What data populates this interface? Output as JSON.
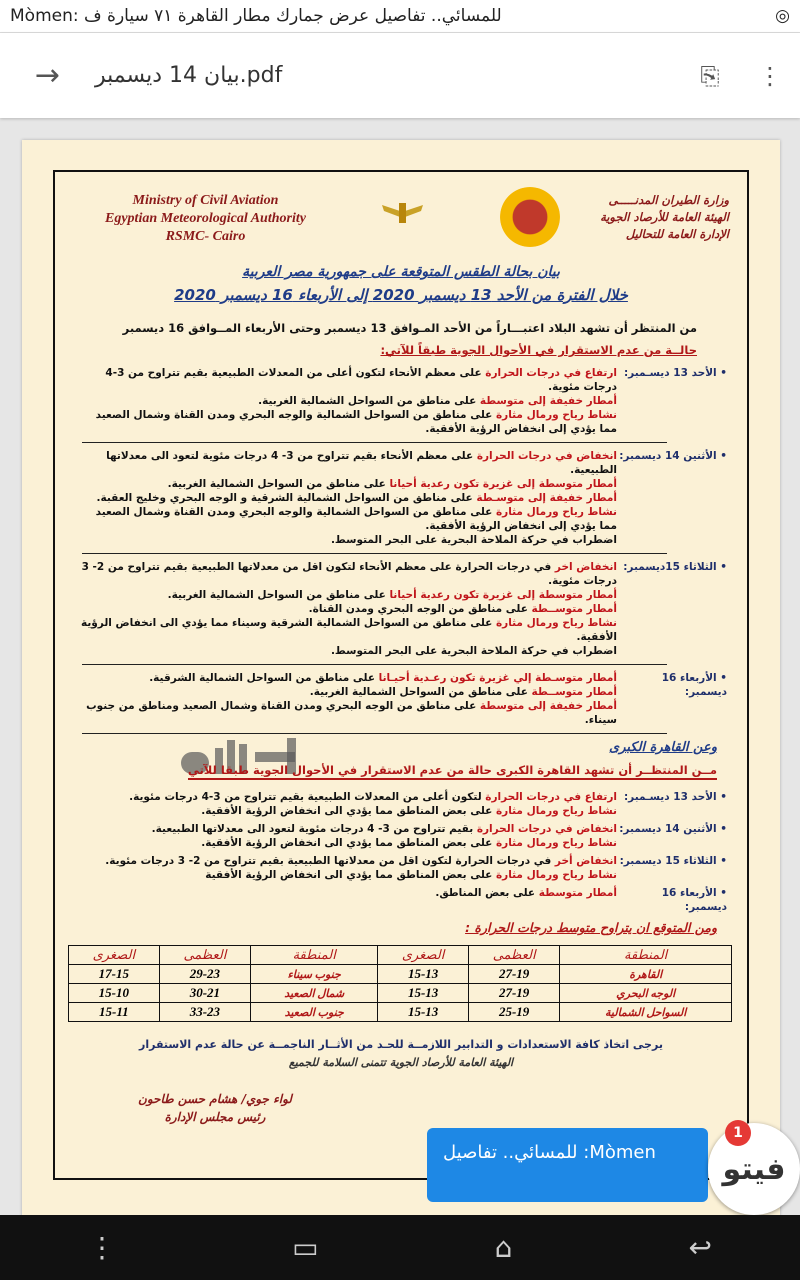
{
  "status_bar": {
    "notification": "للمسائي.. تفاصيل عرض جمارك مطار القاهرة ٧١ سيارة ف :Mòmen",
    "icon": "messenger-icon"
  },
  "toolbar": {
    "back_icon": "arrow-back-icon",
    "title": "بيان 14 ديسمبر.pdf",
    "search_icon": "search-document-icon",
    "menu_icon": "more-vert-icon"
  },
  "doc": {
    "header_en": [
      "Ministry of Civil Aviation",
      "Egyptian Meteorological Authority",
      "RSMC- Cairo"
    ],
    "header_ar": [
      "وزارة الطيران المدنـــــى",
      "الهيئة العامة للأرصاد الجوية",
      "الإدارة العامة للتحاليل"
    ],
    "title1": "بيان بحالة الطقس المتوقعة على جمهورية مصر العربية",
    "title2": "خلال الفترة من الأحد 13 ديسمبر 2020 إلى الأربعاء 16 ديسمبر 2020",
    "intro": "من المنتظر أن تشهد البلاد  اعتبـــاراً من الأحد المـوافق 13 ديسمبر وحتى الأربعاء المــوافق 16 ديسمبر",
    "subtitle": "حالــة من عدم الاستقرار في الأحوال الجوية طبقاً للآتي:",
    "days": [
      {
        "label": "الأحد 13 ديسـمبر:",
        "lines": [
          {
            "red": "ارتفاع في درجات الحرارة",
            "text": " على معظم الأنحاء لتكون أعلى من المعدلات الطبيعية بقيم تتراوح من 3-4 درجات مئوية."
          },
          {
            "red": "أمطار خفيفة إلى متوسطة",
            "text": " على مناطق من السواحل الشمالية الغربية."
          },
          {
            "red": "نشاط رياح ورمال مثارة",
            "text": " على مناطق من السواحل الشمالية والوجه البحري ومدن القناة وشمال الصعيد مما يؤدي إلى انخفاض الرؤية الأفقية."
          }
        ]
      },
      {
        "label": "الأثنين 14 ديسمبر:",
        "lines": [
          {
            "red": "انخفاض في درجات الحرارة",
            "text": " على معظم الأنحاء بقيم تتراوح من 3- 4 درجات مئوية  لتعود الى معدلاتها الطبيعية."
          },
          {
            "red": "أمطار متوسطة إلى غزيرة تكون رعدية أحيانا",
            "text": " على مناطق من السواحل الشمالية الغربية."
          },
          {
            "red": "أمطار خفيفة إلى متوسـطة",
            "text": " على مناطق من السواحل الشمالية الشرقية و الوجه البحري وخليج العقبة."
          },
          {
            "red": "نشاط رياح ورمال مثارة",
            "text": " على مناطق من السواحل الشمالية والوجه البحري ومدن القناة وشمال الصعيد مما يؤدي إلى انخفاض الرؤية الأفقية."
          },
          {
            "red": "",
            "text": "اضطراب في حركة الملاحة البحرية على البحر المتوسط."
          }
        ]
      },
      {
        "label": "الثلاثاء 15ديسمبر:",
        "lines": [
          {
            "red": "انخفاض اخر",
            "text": " في درجات الحرارة على معظم الأنحاء لتكون اقل من معدلاتها الطبيعية بقيم تتراوح من 2- 3 درجات مئوية."
          },
          {
            "red": "أمطار متوسطة إلى غزيرة تكون رعدية أحيانا",
            "text": " على مناطق من السواحل الشمالية الغربية."
          },
          {
            "red": "أمطار متوســطة",
            "text": " على مناطق من الوجه البحري ومدن القناة."
          },
          {
            "red": "نشاط رياح ورمال مثارة",
            "text": " على مناطق من السواحل الشمالية الشرقية وسيناء مما يؤدي الى انخفاض الرؤية الأفقية."
          },
          {
            "red": "",
            "text": "اضطراب في حركة الملاحة البحرية على البحر المتوسط."
          }
        ]
      },
      {
        "label": "الأربعاء 16 ديسمبر:",
        "lines": [
          {
            "red": "أمطار متوسـطة إلي غزيرة تكون رعـدية أحيـانا",
            "text": " على مناطق من السواحل الشمالية الشرقية."
          },
          {
            "red": "أمطار متوســطة",
            "text": " على مناطق من السواحل الشمالية الغربية."
          },
          {
            "red": "أمطار خفيفة إلى متوسطة",
            "text": " على مناطق من الوجه البحري ومدن القناة وشمال الصعيد ومناطق من جنوب سيناء."
          }
        ]
      }
    ],
    "cairo_title": "وعن القاهرة الكبرى",
    "cairo_intro": "مــن المنتظــر أن تشهد القاهرة الكبرى حالة من عدم الاستقرار في الأحوال الجوية طبقا للآتي",
    "cairo_days": [
      {
        "label": "الأحد 13 ديسـمبر:",
        "lines": [
          {
            "red": "ارتفاع في درجات الحرارة",
            "text": " لتكون أعلى من المعدلات الطبيعية بقيم تتراوح من 3-4 درجات مئوية."
          },
          {
            "red": "نشاط رياح ورمال مثارة",
            "text": " على بعض المناطق مما يؤدي الى انخفاض الرؤية الأفقية."
          }
        ]
      },
      {
        "label": "الأثنين 14 ديسمبر:",
        "lines": [
          {
            "red": "انخفاض في درجات الحرارة",
            "text": " بقيم تتراوح من 3- 4 درجات مئوية لتعود الى معدلاتها الطبيعية."
          },
          {
            "red": "نشاط رياح ورمال مثارة",
            "text": " على بعض المناطق مما يؤدي الى انخفاض الرؤية الأفقية."
          }
        ]
      },
      {
        "label": "الثلاثاء 15 ديسمبر:",
        "lines": [
          {
            "red": "انخفاض أخر",
            "text": " في درجات الحرارة  لتكون اقل من معدلاتها الطبيعية بقيم تتراوح من 2- 3 درجات مئوية."
          },
          {
            "red": "نشاط رياح ورمال مثارة",
            "text": " على بعض المناطق مما يؤدي الى انخفاض الرؤية الأفقية"
          }
        ]
      },
      {
        "label": "الأربعاء 16 ديسمبر:",
        "lines": [
          {
            "red": "أمطار متوسطة",
            "text": " على بعض المناطق."
          }
        ]
      }
    ],
    "temps_title": "ومن المتوقع ان يتراوح متوسط درجات الحرارة :",
    "table": {
      "headers": [
        "المنطقة",
        "العظمى",
        "الصغرى",
        "المنطقة",
        "العظمى",
        "الصغرى"
      ],
      "rows": [
        [
          "القاهرة",
          "27-19",
          "15-13",
          "جنوب سيناء",
          "29-23",
          "17-15"
        ],
        [
          "الوجه البحري",
          "27-19",
          "15-13",
          "شمال الصعيد",
          "30-21",
          "15-10"
        ],
        [
          "السواحل الشمالية",
          "25-19",
          "15-13",
          "جنوب الصعيد",
          "33-23",
          "15-11"
        ]
      ]
    },
    "footer1": "يرجى اتخاذ  كافة الاستعدادات و التدابير اللازمــة للحـد من الأثــار الناجمــة عن حالة عدم الاستقرار",
    "footer2": "الهيئة العامة للأرصاد الجوية تتمنى السلامة للجميع",
    "signature": [
      "لواء جوي/ هشام حسن طاحون",
      "رئيس مجلس الإدارة"
    ],
    "watermark": "فيتو"
  },
  "chat_head": {
    "message": "Mòmen: للمسائي.. تفاصيل",
    "badge": "1",
    "avatar_text": "فيتو"
  },
  "nav": {
    "icons": [
      "menu-dots-icon",
      "recents-icon",
      "home-icon",
      "back-icon"
    ]
  }
}
